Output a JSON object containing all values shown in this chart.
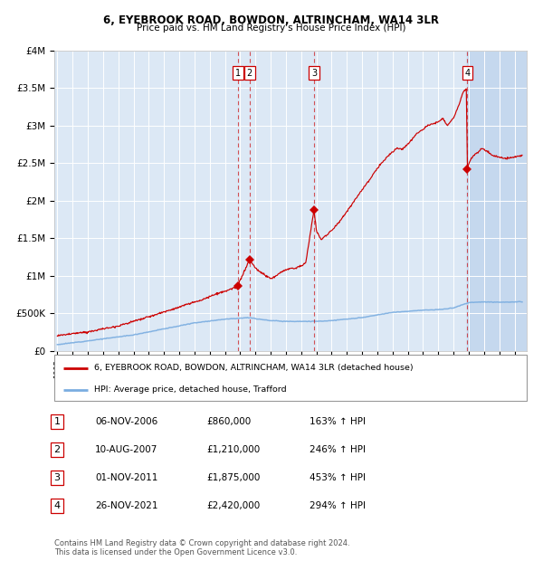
{
  "title": "6, EYEBROOK ROAD, BOWDON, ALTRINCHAM, WA14 3LR",
  "subtitle": "Price paid vs. HM Land Registry's House Price Index (HPI)",
  "legend_red": "6, EYEBROOK ROAD, BOWDON, ALTRINCHAM, WA14 3LR (detached house)",
  "legend_blue": "HPI: Average price, detached house, Trafford",
  "footer_line1": "Contains HM Land Registry data © Crown copyright and database right 2024.",
  "footer_line2": "This data is licensed under the Open Government Licence v3.0.",
  "transactions": [
    {
      "num": "1",
      "date": "06-NOV-2006",
      "price": "£860,000",
      "pct": "163% ↑ HPI",
      "x_year": 2006.85,
      "y_val": 860000
    },
    {
      "num": "2",
      "date": "10-AUG-2007",
      "price": "£1,210,000",
      "pct": "246% ↑ HPI",
      "x_year": 2007.62,
      "y_val": 1210000
    },
    {
      "num": "3",
      "date": "01-NOV-2011",
      "price": "£1,875,000",
      "pct": "453% ↑ HPI",
      "x_year": 2011.84,
      "y_val": 1875000
    },
    {
      "num": "4",
      "date": "26-NOV-2021",
      "price": "£2,420,000",
      "pct": "294% ↑ HPI",
      "x_year": 2021.9,
      "y_val": 2420000
    }
  ],
  "ylim": [
    0,
    4000000
  ],
  "yticks": [
    0,
    500000,
    1000000,
    1500000,
    2000000,
    2500000,
    3000000,
    3500000,
    4000000
  ],
  "ytick_labels": [
    "£0",
    "£500K",
    "£1M",
    "£1.5M",
    "£2M",
    "£2.5M",
    "£3M",
    "£3.5M",
    "£4M"
  ],
  "xlim_start": 1994.8,
  "xlim_end": 2025.8,
  "background_color": "#dce8f5",
  "red_line_color": "#cc0000",
  "blue_line_color": "#7aade0",
  "dashed_line_color": "#cc0000",
  "shade_color": "#c5d8ee",
  "grid_color": "#ffffff"
}
